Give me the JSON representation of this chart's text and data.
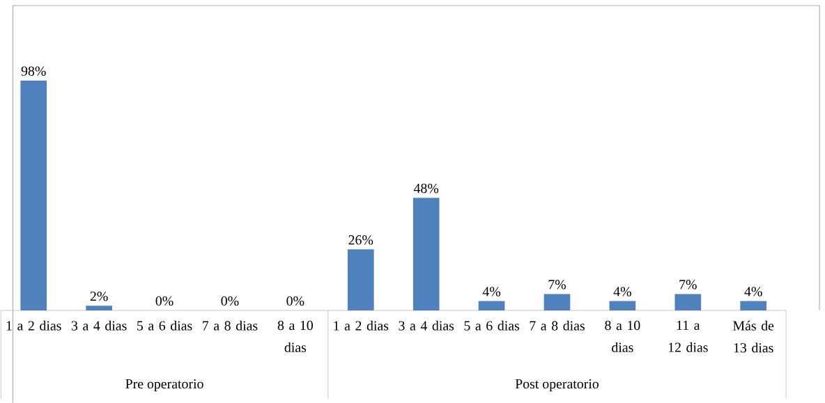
{
  "chart_data": {
    "type": "bar",
    "categories": [
      "1 a 2 dias",
      "3 a 4 dias",
      "5 a 6 dias",
      "7 a 8 dias",
      "8 a 10 dias",
      "1 a 2 dias",
      "3 a 4 dias",
      "5 a 6 dias",
      "7 a 8 dias",
      "8 a 10 dias",
      "11 a 12 dias",
      "Más de 13 dias"
    ],
    "values": [
      98,
      2,
      0,
      0,
      0,
      26,
      48,
      4,
      7,
      4,
      7,
      4
    ],
    "value_labels": [
      "98%",
      "2%",
      "0%",
      "0%",
      "0%",
      "26%",
      "48%",
      "4%",
      "7%",
      "4%",
      "7%",
      "4%"
    ],
    "color": "#4f81bd",
    "ylim": [
      0,
      130
    ],
    "annotations": [
      "Pre operatorio",
      "Post operatorio"
    ]
  }
}
